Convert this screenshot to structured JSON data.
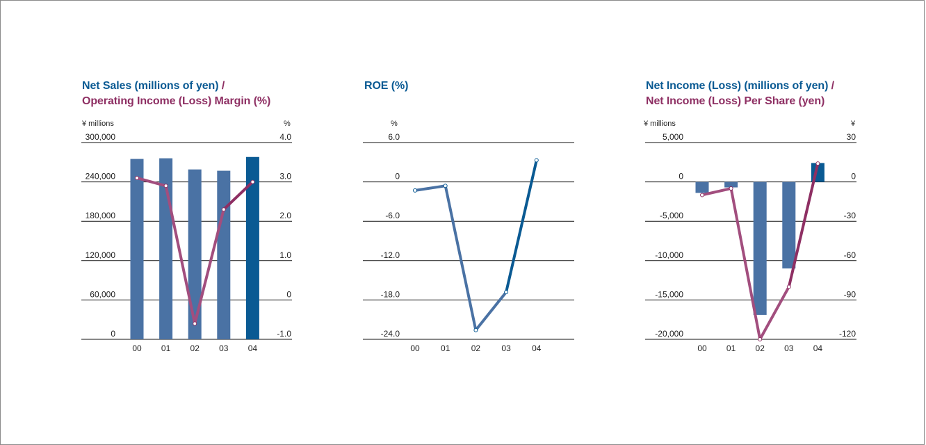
{
  "colors": {
    "bar": "#4a72a4",
    "bar_highlight": "#0a5a93",
    "line_blue": "#4a72a4",
    "line_blue_highlight": "#0a5a93",
    "line_pink": "#a24e7e",
    "line_pink_highlight": "#8e2f63",
    "title_blue": "#0a5a93",
    "title_pink": "#8e2f63"
  },
  "chart_data": [
    {
      "type": "bar",
      "title": "Net Sales (millions of yen)",
      "title_separator": "/",
      "title2": "Operating Income (Loss) Margin (%)",
      "left_unit": "¥ millions",
      "right_unit": "%",
      "categories": [
        "00",
        "01",
        "02",
        "03",
        "04"
      ],
      "series": [
        {
          "values": [
            275000,
            276000,
            259000,
            257000,
            278000
          ],
          "axis": "left",
          "kind": "bar"
        },
        {
          "values": [
            3.1,
            2.9,
            -0.6,
            2.3,
            3.0
          ],
          "axis": "right",
          "kind": "line"
        }
      ],
      "ylim": [
        0,
        300000
      ],
      "y2lim": [
        -1.0,
        4.0
      ],
      "yticks": [
        "0",
        "60,000",
        "120,000",
        "180,000",
        "240,000",
        "300,000"
      ],
      "y2ticks": [
        "-1.0",
        "0",
        "1.0",
        "2.0",
        "3.0",
        "4.0"
      ],
      "grid": true
    },
    {
      "type": "line",
      "title": "ROE (%)",
      "left_unit": "%",
      "categories": [
        "00",
        "01",
        "02",
        "03",
        "04"
      ],
      "series": [
        {
          "values": [
            -1.3,
            -0.6,
            -22.6,
            -16.8,
            3.3
          ]
        }
      ],
      "ylim": [
        -24.0,
        6.0
      ],
      "yticks": [
        "-24.0",
        "-18.0",
        "-12.0",
        "-6.0",
        "0",
        "6.0"
      ],
      "grid": true
    },
    {
      "type": "bar",
      "title": "Net Income (Loss) (millions of yen)",
      "title_separator": "/",
      "title2": "Net Income (Loss) Per Share (yen)",
      "left_unit": "¥ millions",
      "right_unit": "¥",
      "categories": [
        "00",
        "01",
        "02",
        "03",
        "04"
      ],
      "series": [
        {
          "values": [
            -1400,
            -700,
            -16900,
            -11000,
            2400
          ],
          "axis": "left",
          "kind": "bar"
        },
        {
          "values": [
            -10,
            -5,
            -120,
            -80,
            14
          ],
          "axis": "right",
          "kind": "line"
        }
      ],
      "ylim": [
        -20000,
        5000
      ],
      "y2lim": [
        -120,
        30
      ],
      "yticks": [
        "-20,000",
        "-15,000",
        "-10,000",
        "-5,000",
        "0",
        "5,000"
      ],
      "y2ticks": [
        "-120",
        "-90",
        "-60",
        "-30",
        "0",
        "30"
      ],
      "grid": true
    }
  ]
}
